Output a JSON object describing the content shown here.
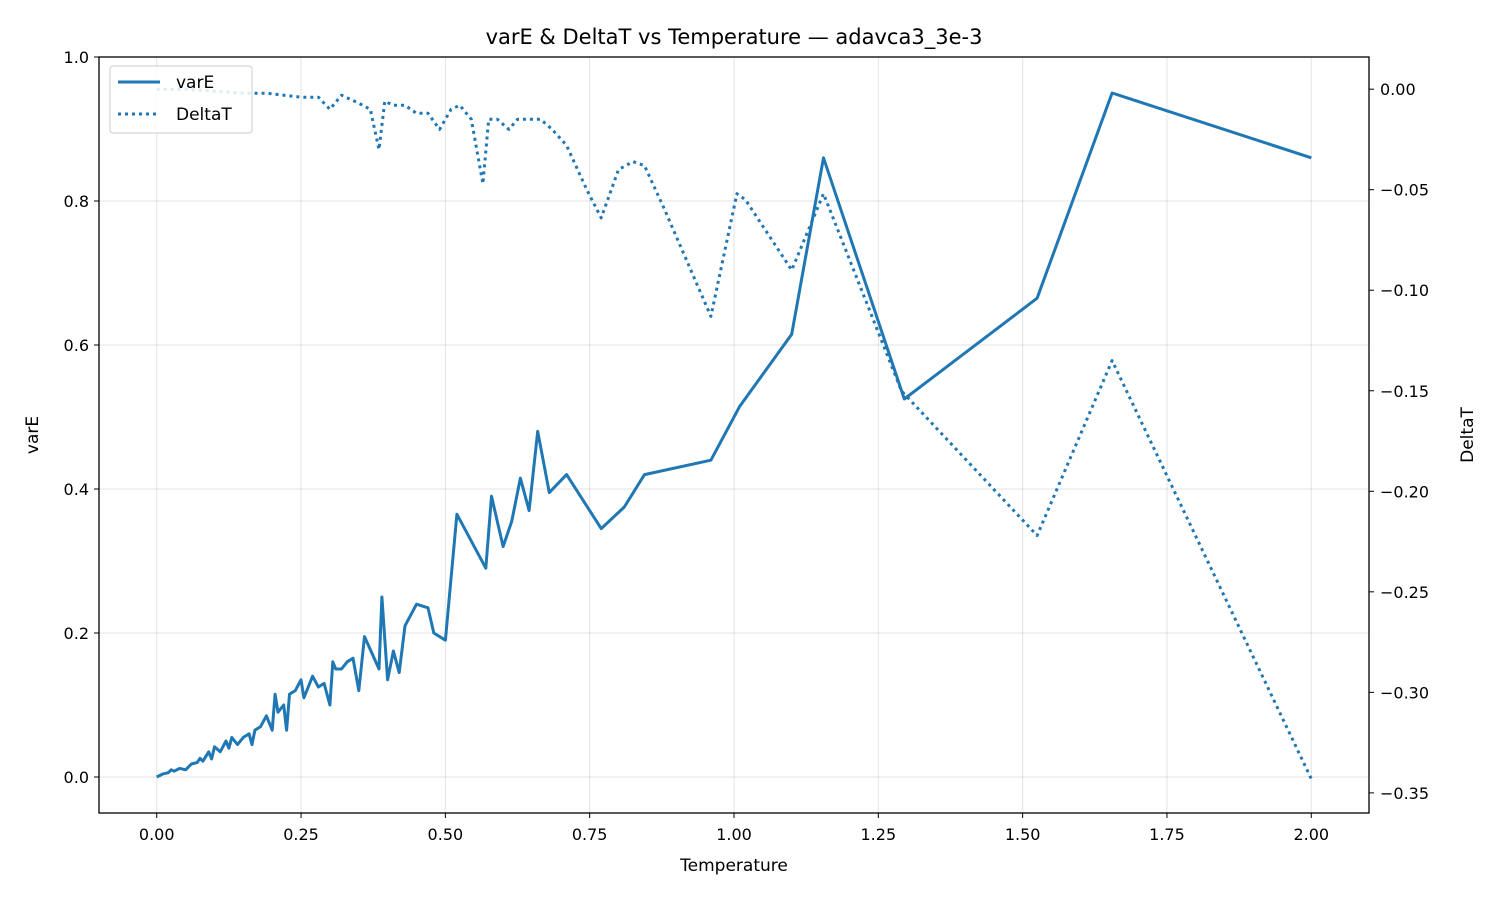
{
  "chart_data": {
    "type": "line",
    "title": "varE & DeltaT vs Temperature — adavca3_3e-3",
    "xlabel": "Temperature",
    "ylabel": "varE",
    "ylabel_right": "DeltaT",
    "xlim": [
      -0.1,
      2.1
    ],
    "ylim": [
      -0.05,
      1.0
    ],
    "ylim_right": [
      -0.36,
      0.016
    ],
    "xticks": [
      "0.00",
      "0.25",
      "0.50",
      "0.75",
      "1.00",
      "1.25",
      "1.50",
      "1.75",
      "2.00"
    ],
    "xtick_values": [
      0,
      0.25,
      0.5,
      0.75,
      1.0,
      1.25,
      1.5,
      1.75,
      2.0
    ],
    "yticks": [
      "0.0",
      "0.2",
      "0.4",
      "0.6",
      "0.8",
      "1.0"
    ],
    "ytick_values": [
      0,
      0.2,
      0.4,
      0.6,
      0.8,
      1.0
    ],
    "yticks_right": [
      "0.00",
      "−0.05",
      "−0.10",
      "−0.15",
      "−0.20",
      "−0.25",
      "−0.30",
      "−0.35"
    ],
    "ytick_right_values": [
      0,
      -0.05,
      -0.1,
      -0.15,
      -0.2,
      -0.25,
      -0.3,
      -0.35
    ],
    "grid": true,
    "legend_position": "top-left",
    "color": "#1f77b4",
    "series": [
      {
        "name": "varE",
        "axis": "left",
        "style": "solid",
        "x": [
          0.0,
          0.01,
          0.02,
          0.025,
          0.03,
          0.04,
          0.05,
          0.06,
          0.07,
          0.075,
          0.08,
          0.09,
          0.095,
          0.1,
          0.11,
          0.12,
          0.125,
          0.13,
          0.14,
          0.15,
          0.16,
          0.165,
          0.17,
          0.18,
          0.19,
          0.2,
          0.205,
          0.21,
          0.22,
          0.225,
          0.23,
          0.24,
          0.25,
          0.255,
          0.27,
          0.28,
          0.29,
          0.3,
          0.305,
          0.31,
          0.32,
          0.33,
          0.34,
          0.35,
          0.36,
          0.385,
          0.39,
          0.4,
          0.41,
          0.42,
          0.43,
          0.45,
          0.47,
          0.48,
          0.5,
          0.52,
          0.57,
          0.58,
          0.6,
          0.615,
          0.63,
          0.645,
          0.66,
          0.68,
          0.71,
          0.77,
          0.81,
          0.845,
          0.96,
          1.01,
          1.1,
          1.155,
          1.295,
          1.525,
          1.655,
          2.0
        ],
        "values": [
          0.0,
          0.004,
          0.006,
          0.01,
          0.008,
          0.012,
          0.01,
          0.018,
          0.02,
          0.026,
          0.022,
          0.035,
          0.025,
          0.042,
          0.035,
          0.05,
          0.04,
          0.055,
          0.045,
          0.055,
          0.06,
          0.045,
          0.065,
          0.07,
          0.085,
          0.065,
          0.115,
          0.09,
          0.1,
          0.065,
          0.115,
          0.12,
          0.135,
          0.11,
          0.14,
          0.125,
          0.13,
          0.1,
          0.16,
          0.15,
          0.15,
          0.16,
          0.165,
          0.12,
          0.195,
          0.15,
          0.25,
          0.135,
          0.175,
          0.145,
          0.21,
          0.24,
          0.235,
          0.2,
          0.19,
          0.365,
          0.29,
          0.39,
          0.32,
          0.355,
          0.415,
          0.37,
          0.48,
          0.395,
          0.42,
          0.345,
          0.375,
          0.42,
          0.44,
          0.515,
          0.615,
          0.86,
          0.525,
          0.665,
          0.95,
          0.86
        ]
      },
      {
        "name": "DeltaT",
        "axis": "right",
        "style": "dotted",
        "x": [
          0.0,
          0.05,
          0.1,
          0.15,
          0.19,
          0.22,
          0.25,
          0.28,
          0.3,
          0.32,
          0.35,
          0.37,
          0.385,
          0.395,
          0.41,
          0.43,
          0.45,
          0.47,
          0.49,
          0.51,
          0.525,
          0.545,
          0.565,
          0.575,
          0.59,
          0.61,
          0.625,
          0.645,
          0.665,
          0.685,
          0.71,
          0.745,
          0.77,
          0.8,
          0.825,
          0.845,
          0.88,
          0.96,
          1.005,
          1.02,
          1.1,
          1.155,
          1.29,
          1.525,
          1.655,
          2.0
        ],
        "values": [
          0.0,
          0.0,
          -0.001,
          -0.002,
          -0.002,
          -0.003,
          -0.004,
          -0.004,
          -0.01,
          -0.003,
          -0.007,
          -0.01,
          -0.03,
          -0.006,
          -0.008,
          -0.008,
          -0.012,
          -0.012,
          -0.02,
          -0.01,
          -0.008,
          -0.015,
          -0.047,
          -0.015,
          -0.015,
          -0.02,
          -0.015,
          -0.015,
          -0.015,
          -0.02,
          -0.028,
          -0.05,
          -0.064,
          -0.04,
          -0.036,
          -0.038,
          -0.06,
          -0.113,
          -0.052,
          -0.055,
          -0.09,
          -0.052,
          -0.15,
          -0.222,
          -0.135,
          -0.343
        ]
      }
    ]
  }
}
